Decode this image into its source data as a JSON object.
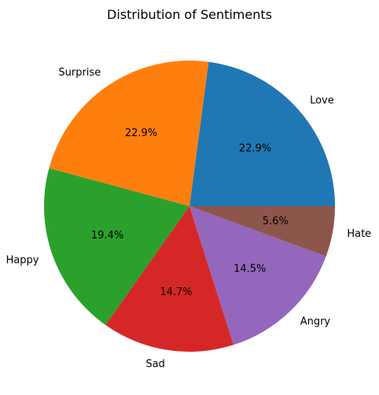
{
  "chart_data": {
    "type": "pie",
    "title": "Distribution of Sentiments",
    "start_angle_deg": 0,
    "direction": "counterclockwise",
    "slices": [
      {
        "label": "Love",
        "percent": 22.9,
        "percent_label": "22.9%",
        "color": "#1f77b4"
      },
      {
        "label": "Surprise",
        "percent": 22.9,
        "percent_label": "22.9%",
        "color": "#ff7f0e"
      },
      {
        "label": "Happy",
        "percent": 19.4,
        "percent_label": "19.4%",
        "color": "#2ca02c"
      },
      {
        "label": "Sad",
        "percent": 14.7,
        "percent_label": "14.7%",
        "color": "#d62728"
      },
      {
        "label": "Angry",
        "percent": 14.5,
        "percent_label": "14.5%",
        "color": "#9467bd"
      },
      {
        "label": "Hate",
        "percent": 5.6,
        "percent_label": "5.6%",
        "color": "#8c564b"
      }
    ]
  }
}
